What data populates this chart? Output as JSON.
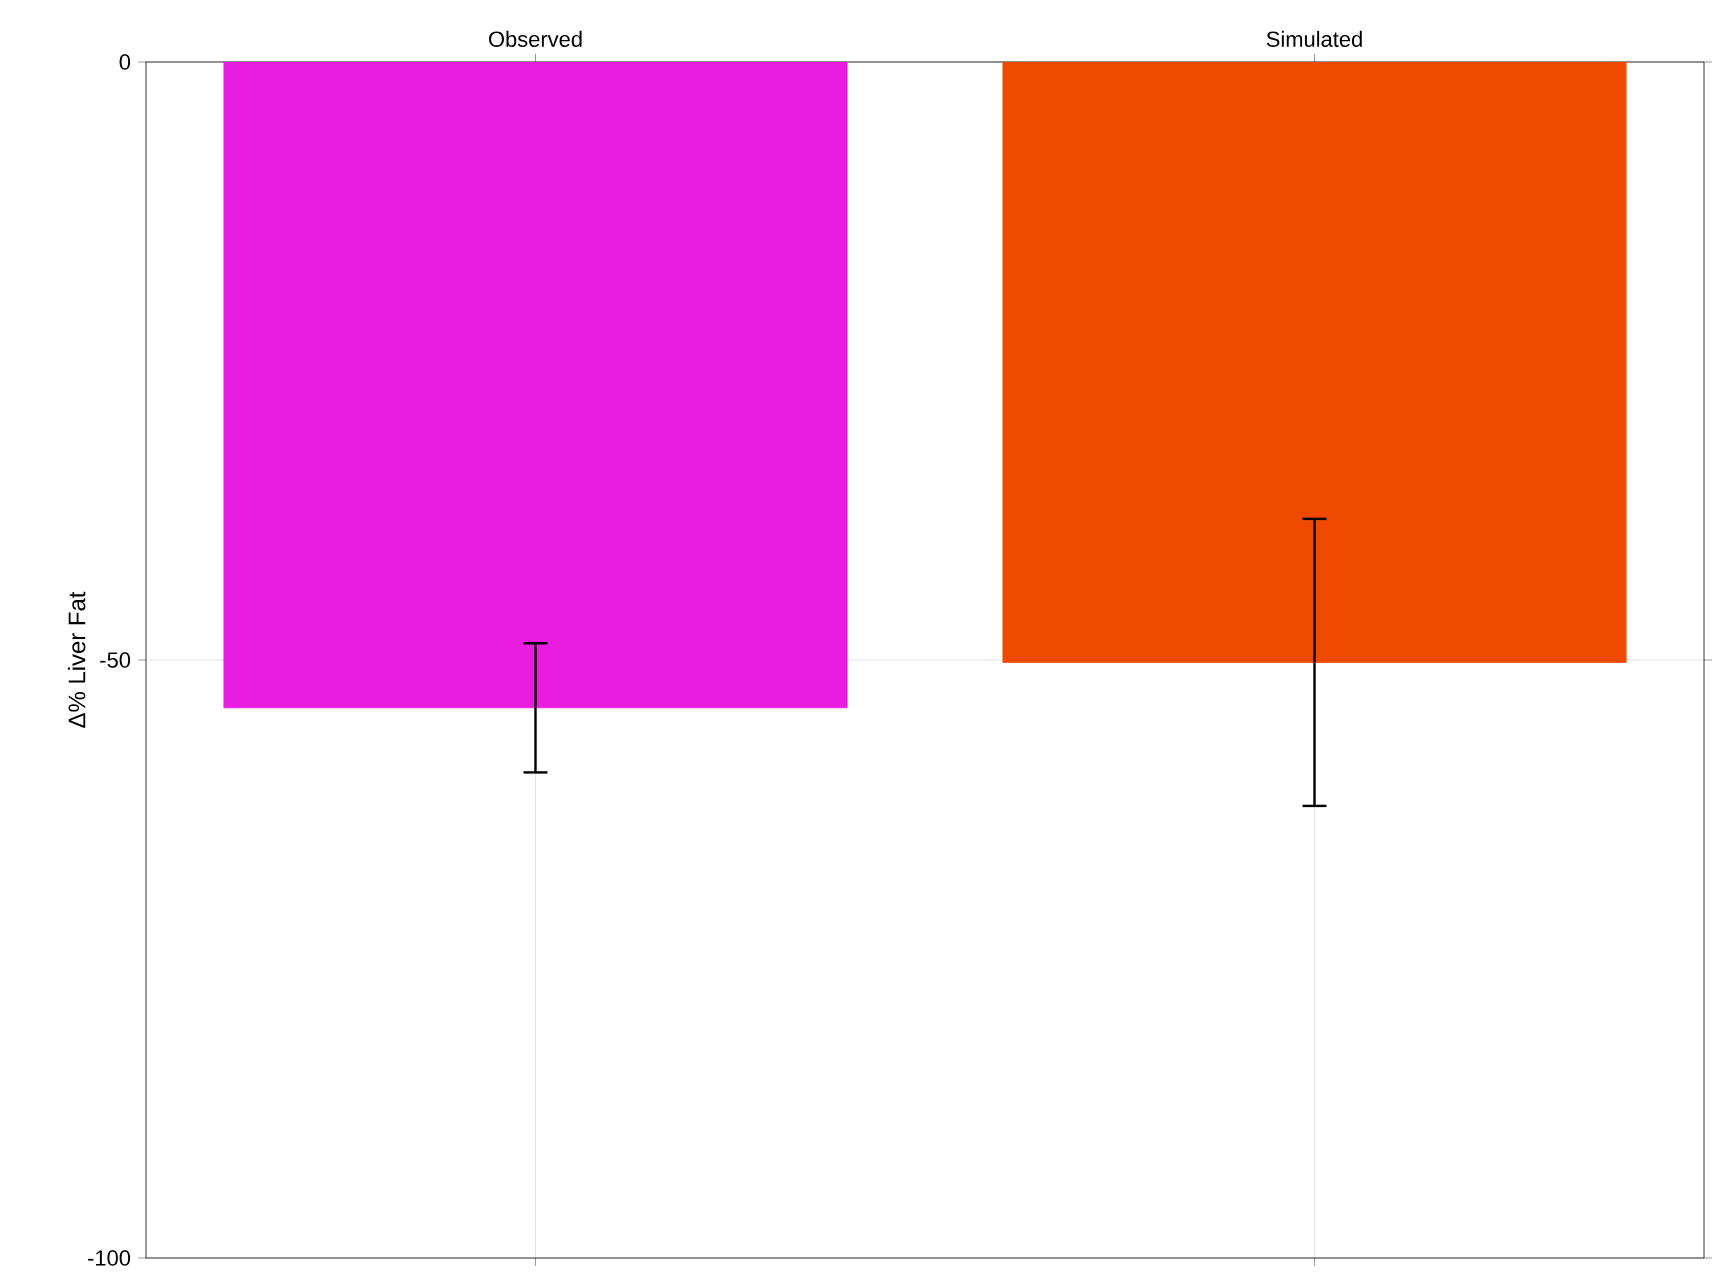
{
  "chart_data": {
    "type": "bar",
    "ylabel": "Δ% Liver Fat",
    "categories": [
      "Observed",
      "Simulated"
    ],
    "values": [
      -54,
      -50.2
    ],
    "colors": [
      "#e81de0",
      "#f04a00"
    ],
    "errors": [
      5.4,
      12
    ],
    "ylim": [
      -100,
      0
    ],
    "yticks": [
      -100,
      -50,
      0
    ],
    "grid": true
  }
}
